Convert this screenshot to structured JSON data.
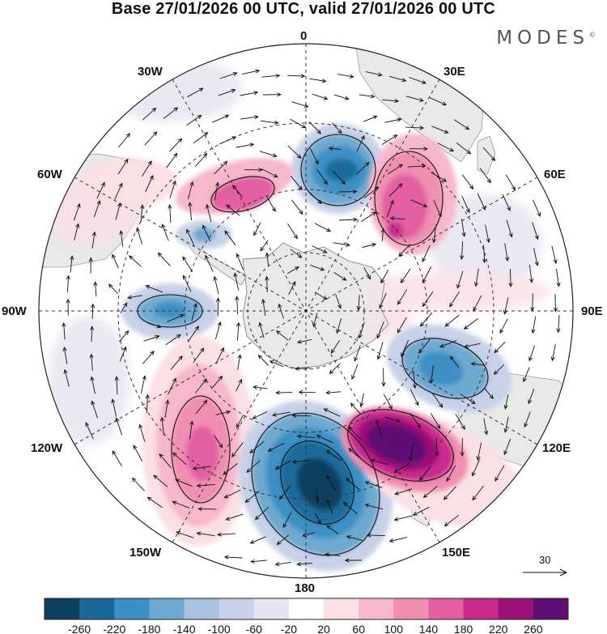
{
  "title": "Base 27/01/2026 00 UTC, valid 27/01/2026 00 UTC",
  "logo": {
    "text": "MODES",
    "mark": "©"
  },
  "map": {
    "projection": "south-polar-stereographic",
    "longitude_labels": {
      "lon_0": "0",
      "lon_30e": "30E",
      "lon_60e": "60E",
      "lon_90e": "90E",
      "lon_120e": "120E",
      "lon_150e": "150E",
      "lon_180": "180",
      "lon_150w": "150W",
      "lon_120w": "120W",
      "lon_90w": "90W",
      "lon_60w": "60W",
      "lon_30w": "30W"
    },
    "vector_reference": {
      "label": "30"
    }
  },
  "colorbar": {
    "colors": [
      "#0d3f5f",
      "#1a6a99",
      "#3c8fc4",
      "#6ea9d0",
      "#a9c2e0",
      "#c9d1e8",
      "#e6e4f1",
      "#ffffff",
      "#fbe0e6",
      "#f6b8ca",
      "#f08fb2",
      "#e25fa1",
      "#c92a8e",
      "#9a1178",
      "#5f0f73"
    ],
    "labels": [
      "-260",
      "-220",
      "-180",
      "-140",
      "-100",
      "-60",
      "-20",
      "20",
      "60",
      "100",
      "140",
      "180",
      "220",
      "260"
    ]
  },
  "colors": {
    "land": "#e9e9e9",
    "coast": "#9a9a9a",
    "grid": "#333333"
  }
}
